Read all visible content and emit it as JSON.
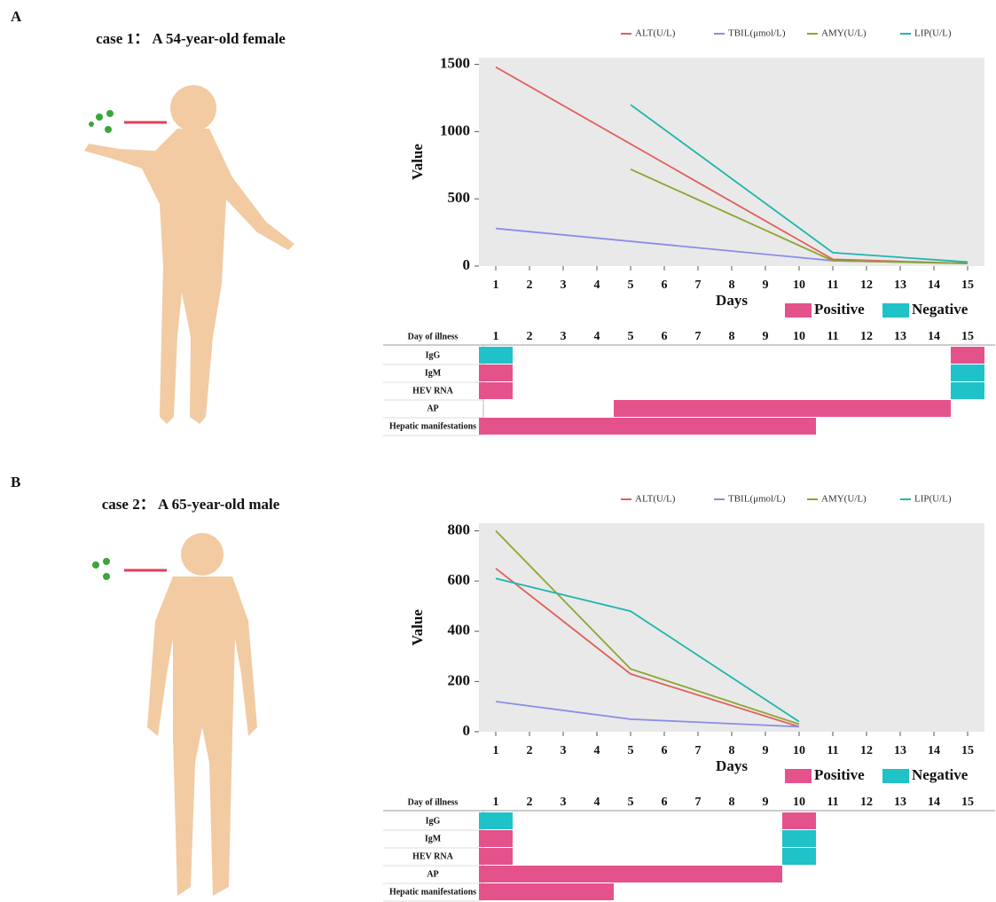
{
  "panels": [
    {
      "label": "A",
      "title": "case 1： A 54-year-old female",
      "timeline": {
        "header": "Day of illness",
        "days": [
          1,
          2,
          3,
          4,
          5,
          6,
          7,
          8,
          9,
          10,
          11,
          12,
          13,
          14,
          15
        ],
        "statuses": [
          {
            "name": "Positive",
            "color": "#e4528c"
          },
          {
            "name": "Negative",
            "color": "#1fc2c8"
          }
        ],
        "rows": [
          {
            "name": "IgG",
            "segments": [
              {
                "start": 1,
                "end": 1,
                "status": "Negative"
              },
              {
                "start": 15,
                "end": 15,
                "status": "Positive"
              }
            ]
          },
          {
            "name": "IgM",
            "segments": [
              {
                "start": 1,
                "end": 1,
                "status": "Positive"
              },
              {
                "start": 15,
                "end": 15,
                "status": "Negative"
              }
            ]
          },
          {
            "name": "HEV RNA",
            "segments": [
              {
                "start": 1,
                "end": 1,
                "status": "Positive"
              },
              {
                "start": 15,
                "end": 15,
                "status": "Negative"
              }
            ]
          },
          {
            "name": "AP",
            "segments": [
              {
                "start": 5,
                "end": 14,
                "status": "Positive"
              }
            ]
          },
          {
            "name": "Hepatic manifestations",
            "segments": [
              {
                "start": 1,
                "end": 10,
                "status": "Positive"
              }
            ]
          }
        ]
      }
    },
    {
      "label": "B",
      "title": "case 2： A 65-year-old male",
      "timeline": {
        "header": "Day of illness",
        "days": [
          1,
          2,
          3,
          4,
          5,
          6,
          7,
          8,
          9,
          10,
          11,
          12,
          13,
          14,
          15
        ],
        "statuses": [
          {
            "name": "Positive",
            "color": "#e4528c"
          },
          {
            "name": "Negative",
            "color": "#1fc2c8"
          }
        ],
        "rows": [
          {
            "name": "IgG",
            "segments": [
              {
                "start": 1,
                "end": 1,
                "status": "Negative"
              },
              {
                "start": 10,
                "end": 10,
                "status": "Positive"
              }
            ]
          },
          {
            "name": "IgM",
            "segments": [
              {
                "start": 1,
                "end": 1,
                "status": "Positive"
              },
              {
                "start": 10,
                "end": 10,
                "status": "Negative"
              }
            ]
          },
          {
            "name": "HEV RNA",
            "segments": [
              {
                "start": 1,
                "end": 1,
                "status": "Positive"
              },
              {
                "start": 10,
                "end": 10,
                "status": "Negative"
              }
            ]
          },
          {
            "name": "AP",
            "segments": [
              {
                "start": 1,
                "end": 9,
                "status": "Positive"
              }
            ]
          },
          {
            "name": "Hepatic manifestations",
            "segments": [
              {
                "start": 1,
                "end": 4,
                "status": "Positive"
              }
            ]
          }
        ]
      }
    }
  ],
  "chart_data": [
    {
      "type": "line",
      "x_label": "Days",
      "y_label": "Value",
      "xlim": [
        0.5,
        15.5
      ],
      "xticks": [
        1,
        2,
        3,
        4,
        5,
        6,
        7,
        8,
        9,
        10,
        11,
        12,
        13,
        14,
        15
      ],
      "ylim": [
        0,
        1550
      ],
      "yticks": [
        0,
        500,
        1000,
        1500
      ],
      "background": "#e9e9e9",
      "series": [
        {
          "name": "ALT(U/L)",
          "color": "#e0605a",
          "x": [
            1,
            11,
            15
          ],
          "values": [
            1480,
            50,
            20
          ]
        },
        {
          "name": "TBIL(μmol/L)",
          "color": "#8c8ce6",
          "x": [
            1,
            11,
            15
          ],
          "values": [
            280,
            40,
            20
          ]
        },
        {
          "name": "AMY(U/L)",
          "color": "#8aa630",
          "x": [
            5,
            11,
            15
          ],
          "values": [
            720,
            40,
            20
          ]
        },
        {
          "name": "LIP(U/L)",
          "color": "#1fb5b0",
          "x": [
            5,
            11,
            15
          ],
          "values": [
            1200,
            100,
            30
          ]
        }
      ]
    },
    {
      "type": "line",
      "x_label": "Days",
      "y_label": "Value",
      "xlim": [
        0.5,
        15.5
      ],
      "xticks": [
        1,
        2,
        3,
        4,
        5,
        6,
        7,
        8,
        9,
        10,
        11,
        12,
        13,
        14,
        15
      ],
      "ylim": [
        0,
        830
      ],
      "yticks": [
        0,
        200,
        400,
        600,
        800
      ],
      "background": "#e9e9e9",
      "series": [
        {
          "name": "ALT(U/L)",
          "color": "#e0605a",
          "x": [
            1,
            5,
            10
          ],
          "values": [
            650,
            230,
            20
          ]
        },
        {
          "name": "TBIL(μmol/L)",
          "color": "#8c8ce6",
          "x": [
            1,
            5,
            10
          ],
          "values": [
            120,
            50,
            20
          ]
        },
        {
          "name": "AMY(U/L)",
          "color": "#8aa630",
          "x": [
            1,
            5,
            10
          ],
          "values": [
            800,
            250,
            30
          ]
        },
        {
          "name": "LIP(U/L)",
          "color": "#1fb5b0",
          "x": [
            1,
            5,
            10
          ],
          "values": [
            610,
            480,
            40
          ]
        }
      ]
    }
  ]
}
